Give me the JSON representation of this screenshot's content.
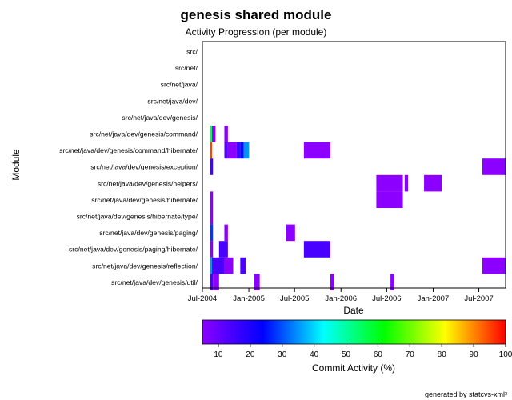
{
  "chart_data": {
    "type": "heatmap",
    "title": "genesis shared module",
    "subtitle": "Activity Progression (per module)",
    "xlabel": "Date",
    "ylabel": "Module",
    "x_ticks": [
      "Jul-2004",
      "Jan-2005",
      "Jul-2005",
      "Jan-2006",
      "Jul-2006",
      "Jan-2007",
      "Jul-2007"
    ],
    "xlim": [
      "2004-07-01",
      "2007-10-15"
    ],
    "categories": [
      "src/",
      "src/net/",
      "src/net/java/",
      "src/net/java/dev/",
      "src/net/java/dev/genesis/",
      "src/net/java/dev/genesis/command/",
      "src/net/java/dev/genesis/command/hibernate/",
      "src/net/java/dev/genesis/exception/",
      "src/net/java/dev/genesis/helpers/",
      "src/net/java/dev/genesis/hibernate/",
      "src/net/java/dev/genesis/hibernate/type/",
      "src/net/java/dev/genesis/paging/",
      "src/net/java/dev/genesis/paging/hibernate/",
      "src/net/java/dev/genesis/reflection/",
      "src/net/java/dev/genesis/util/"
    ],
    "cells": [
      {
        "module": "src/net/java/dev/genesis/command/",
        "start": "2004-08-01",
        "end": "2004-08-08",
        "activity": 55
      },
      {
        "module": "src/net/java/dev/genesis/command/",
        "start": "2004-08-08",
        "end": "2004-08-22",
        "activity": 5
      },
      {
        "module": "src/net/java/dev/genesis/command/",
        "start": "2004-09-26",
        "end": "2004-10-10",
        "activity": 5
      },
      {
        "module": "src/net/java/dev/genesis/command/hibernate/",
        "start": "2004-08-01",
        "end": "2004-08-08",
        "activity": 95
      },
      {
        "module": "src/net/java/dev/genesis/command/hibernate/",
        "start": "2004-09-26",
        "end": "2004-10-10",
        "activity": 12
      },
      {
        "module": "src/net/java/dev/genesis/command/hibernate/",
        "start": "2004-10-10",
        "end": "2004-11-14",
        "activity": 5
      },
      {
        "module": "src/net/java/dev/genesis/command/hibernate/",
        "start": "2004-11-14",
        "end": "2004-11-28",
        "activity": 15
      },
      {
        "module": "src/net/java/dev/genesis/command/hibernate/",
        "start": "2004-11-28",
        "end": "2004-12-12",
        "activity": 25
      },
      {
        "module": "src/net/java/dev/genesis/command/hibernate/",
        "start": "2004-12-12",
        "end": "2005-01-02",
        "activity": 35
      },
      {
        "module": "src/net/java/dev/genesis/command/hibernate/",
        "start": "2005-08-07",
        "end": "2005-11-20",
        "activity": 5
      },
      {
        "module": "src/net/java/dev/genesis/exception/",
        "start": "2004-08-01",
        "end": "2004-08-12",
        "activity": 15
      },
      {
        "module": "src/net/java/dev/genesis/exception/",
        "start": "2007-07-15",
        "end": "2007-10-15",
        "activity": 5
      },
      {
        "module": "src/net/java/dev/genesis/helpers/",
        "start": "2006-05-21",
        "end": "2006-09-03",
        "activity": 5
      },
      {
        "module": "src/net/java/dev/genesis/helpers/",
        "start": "2006-09-10",
        "end": "2006-09-24",
        "activity": 5
      },
      {
        "module": "src/net/java/dev/genesis/helpers/",
        "start": "2006-11-26",
        "end": "2007-02-04",
        "activity": 5
      },
      {
        "module": "src/net/java/dev/genesis/hibernate/",
        "start": "2004-08-01",
        "end": "2004-08-12",
        "activity": 5
      },
      {
        "module": "src/net/java/dev/genesis/hibernate/",
        "start": "2006-05-21",
        "end": "2006-09-03",
        "activity": 5
      },
      {
        "module": "src/net/java/dev/genesis/hibernate/type/",
        "start": "2004-08-01",
        "end": "2004-08-12",
        "activity": 5
      },
      {
        "module": "src/net/java/dev/genesis/paging/",
        "start": "2004-08-01",
        "end": "2004-08-12",
        "activity": 28
      },
      {
        "module": "src/net/java/dev/genesis/paging/",
        "start": "2004-09-26",
        "end": "2004-10-10",
        "activity": 5
      },
      {
        "module": "src/net/java/dev/genesis/paging/",
        "start": "2005-05-29",
        "end": "2005-07-03",
        "activity": 5
      },
      {
        "module": "src/net/java/dev/genesis/paging/hibernate/",
        "start": "2004-08-01",
        "end": "2004-08-12",
        "activity": 5
      },
      {
        "module": "src/net/java/dev/genesis/paging/hibernate/",
        "start": "2004-09-05",
        "end": "2004-10-10",
        "activity": 14
      },
      {
        "module": "src/net/java/dev/genesis/paging/hibernate/",
        "start": "2005-08-07",
        "end": "2005-11-20",
        "activity": 14
      },
      {
        "module": "src/net/java/dev/genesis/reflection/",
        "start": "2004-08-01",
        "end": "2004-08-08",
        "activity": 35
      },
      {
        "module": "src/net/java/dev/genesis/reflection/",
        "start": "2004-08-08",
        "end": "2004-09-26",
        "activity": 14
      },
      {
        "module": "src/net/java/dev/genesis/reflection/",
        "start": "2004-09-26",
        "end": "2004-10-31",
        "activity": 5
      },
      {
        "module": "src/net/java/dev/genesis/reflection/",
        "start": "2004-11-28",
        "end": "2004-12-19",
        "activity": 14
      },
      {
        "module": "src/net/java/dev/genesis/reflection/",
        "start": "2007-07-15",
        "end": "2007-10-15",
        "activity": 5
      },
      {
        "module": "src/net/java/dev/genesis/util/",
        "start": "2004-08-01",
        "end": "2004-08-12",
        "activity": 14
      },
      {
        "module": "src/net/java/dev/genesis/util/",
        "start": "2004-08-12",
        "end": "2004-09-05",
        "activity": 5
      },
      {
        "module": "src/net/java/dev/genesis/util/",
        "start": "2005-01-23",
        "end": "2005-02-13",
        "activity": 5
      },
      {
        "module": "src/net/java/dev/genesis/util/",
        "start": "2005-11-20",
        "end": "2005-12-04",
        "activity": 5
      },
      {
        "module": "src/net/java/dev/genesis/util/",
        "start": "2006-07-16",
        "end": "2006-07-30",
        "activity": 5
      }
    ],
    "colorbar": {
      "label": "Commit Activity (%)",
      "range": [
        5,
        100
      ],
      "ticks": [
        10,
        20,
        30,
        40,
        50,
        60,
        70,
        80,
        90,
        100
      ],
      "colormap": "rainbow",
      "stops": [
        "#8b00ff",
        "#0000ff",
        "#00ffff",
        "#00ff00",
        "#ffff00",
        "#ff0000"
      ]
    },
    "footer": "generated by statcvs-xml²"
  }
}
